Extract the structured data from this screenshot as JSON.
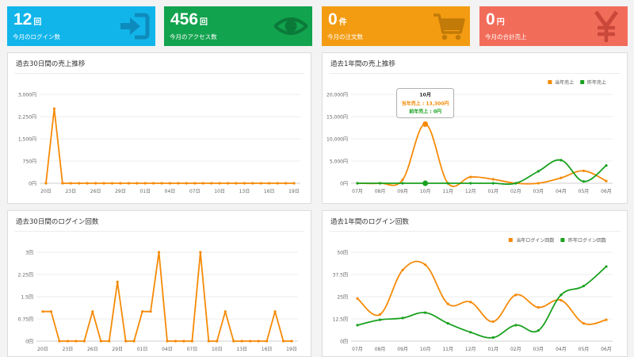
{
  "kpis": [
    {
      "value": "12",
      "unit": "回",
      "label": "今月のログイン数",
      "color": "#12b5ea",
      "icon": "login-icon"
    },
    {
      "value": "456",
      "unit": "回",
      "label": "今月のアクセス数",
      "color": "#12a34e",
      "icon": "eye-icon"
    },
    {
      "value": "0",
      "unit": "件",
      "label": "今月の注文数",
      "color": "#f39c12",
      "icon": "cart-icon"
    },
    {
      "value": "0",
      "unit": "円",
      "label": "今月の合計売上",
      "color": "#f26c5a",
      "icon": "yen-icon"
    }
  ],
  "colors": {
    "orange": "#f58a07",
    "green": "#19a11f"
  },
  "chart_data": [
    {
      "type": "line",
      "title": "過去30日間の売上推移",
      "ylim": [
        0,
        3000
      ],
      "yticks": [
        "0円",
        "750円",
        "1,500円",
        "2,250円",
        "3,000円"
      ],
      "ytick_values": [
        0,
        750,
        1500,
        2250,
        3000
      ],
      "xticks": [
        "20日",
        "23日",
        "26日",
        "29日",
        "01日",
        "04日",
        "07日",
        "10日",
        "13日",
        "16日",
        "19日"
      ],
      "series": [
        {
          "color": "#f58a07",
          "values": [
            0,
            2520,
            0,
            0,
            0,
            0,
            0,
            0,
            0,
            0,
            0,
            0,
            0,
            0,
            0,
            0,
            0,
            0,
            0,
            0,
            0,
            0,
            0,
            0,
            0,
            0,
            0,
            0,
            0,
            0,
            0
          ]
        }
      ]
    },
    {
      "type": "line",
      "title": "過去1年間の売上推移",
      "ylim": [
        0,
        20000
      ],
      "yticks": [
        "0円",
        "5,000円",
        "10,000円",
        "15,000円",
        "20,000円"
      ],
      "ytick_values": [
        0,
        5000,
        10000,
        15000,
        20000
      ],
      "xticks": [
        "07月",
        "08月",
        "09月",
        "10月",
        "11月",
        "12月",
        "01月",
        "02月",
        "03月",
        "04月",
        "05月",
        "06月"
      ],
      "legend": [
        "当年売上",
        "昨年売上"
      ],
      "legend_position": "top-right",
      "series": [
        {
          "name": "当年売上",
          "color": "#f58a07",
          "values": [
            0,
            0,
            800,
            13300,
            0,
            1400,
            900,
            0,
            0,
            1200,
            2800,
            500
          ]
        },
        {
          "name": "昨年売上",
          "color": "#19a11f",
          "values": [
            0,
            0,
            0,
            0,
            0,
            0,
            0,
            0,
            2700,
            5200,
            400,
            4000
          ]
        }
      ],
      "tooltip": {
        "title": "10月",
        "current": "当年売上 : 13,300円",
        "previous": "前年売上 : 0円"
      }
    },
    {
      "type": "line",
      "title": "過去30日間のログイン回数",
      "ylim": [
        0,
        3
      ],
      "yticks": [
        "0回",
        "0.75回",
        "1.5回",
        "2.25回",
        "3回"
      ],
      "ytick_values": [
        0,
        0.75,
        1.5,
        2.25,
        3
      ],
      "xticks": [
        "20日",
        "23日",
        "26日",
        "29日",
        "01日",
        "04日",
        "07日",
        "10日",
        "13日",
        "16日",
        "19日"
      ],
      "series": [
        {
          "color": "#f58a07",
          "values": [
            1,
            1,
            0,
            0,
            0,
            0,
            1,
            0,
            0,
            2,
            0,
            0,
            1,
            1,
            3,
            0,
            0,
            0,
            0,
            3,
            0,
            0,
            1,
            0,
            0,
            0,
            0,
            0,
            1,
            0,
            0
          ]
        }
      ]
    },
    {
      "type": "line",
      "title": "過去1年間のログイン回数",
      "ylim": [
        0,
        50
      ],
      "yticks": [
        "0回",
        "12.5回",
        "25回",
        "37.5回",
        "50回"
      ],
      "ytick_values": [
        0,
        12.5,
        25,
        37.5,
        50
      ],
      "xticks": [
        "07月",
        "08月",
        "09月",
        "10月",
        "11月",
        "12月",
        "01月",
        "02月",
        "03月",
        "04月",
        "05月",
        "06月"
      ],
      "legend": [
        "当年ログイン回数",
        "昨年ログイン回数"
      ],
      "legend_position": "top-right",
      "series": [
        {
          "name": "当年ログイン回数",
          "color": "#f58a07",
          "values": [
            24,
            15,
            40,
            43,
            21,
            22,
            11,
            26,
            19,
            23,
            10,
            12
          ]
        },
        {
          "name": "昨年ログイン回数",
          "color": "#19a11f",
          "values": [
            9,
            12,
            13,
            16,
            10,
            5,
            2,
            9,
            6,
            26,
            31,
            42
          ]
        }
      ]
    }
  ]
}
